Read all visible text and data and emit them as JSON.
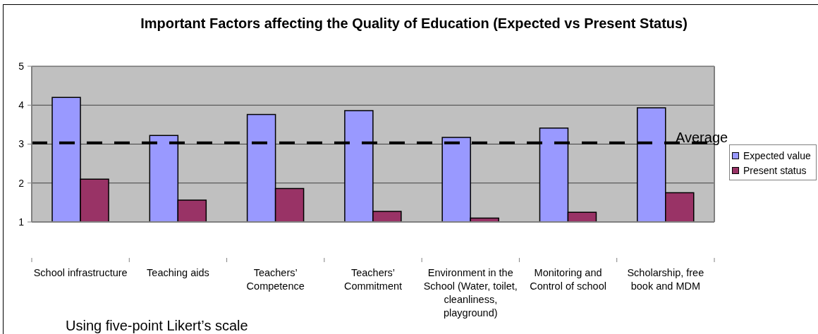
{
  "chart_data": {
    "type": "bar",
    "title": "Important Factors affecting the Quality of Education (Expected vs Present Status)",
    "categories": [
      "School infrastructure",
      "Teaching aids",
      "Teachers’ Competence",
      "Teachers’ Commitment",
      "Environment in the School (Water, toilet, cleanliness, playground)",
      "Monitoring and Control of school",
      "Scholarship, free book and MDM"
    ],
    "series": [
      {
        "name": "Expected value",
        "color": "#9999ff",
        "values": [
          4.2,
          3.22,
          3.76,
          3.86,
          3.17,
          3.41,
          3.93
        ]
      },
      {
        "name": "Present status",
        "color": "#993366",
        "values": [
          2.1,
          1.56,
          1.86,
          1.27,
          1.1,
          1.25,
          1.75
        ]
      }
    ],
    "ylim": [
      1,
      5
    ],
    "yticks": [
      1,
      2,
      3,
      4,
      5
    ],
    "grid": "y",
    "legend": "right",
    "ref_lines": [
      {
        "axis": "y",
        "value": 3.03,
        "label": "Average",
        "color": "#000000",
        "line_style": "dashed"
      }
    ],
    "annotations": [
      "Using five-point Likert’s scale"
    ]
  }
}
